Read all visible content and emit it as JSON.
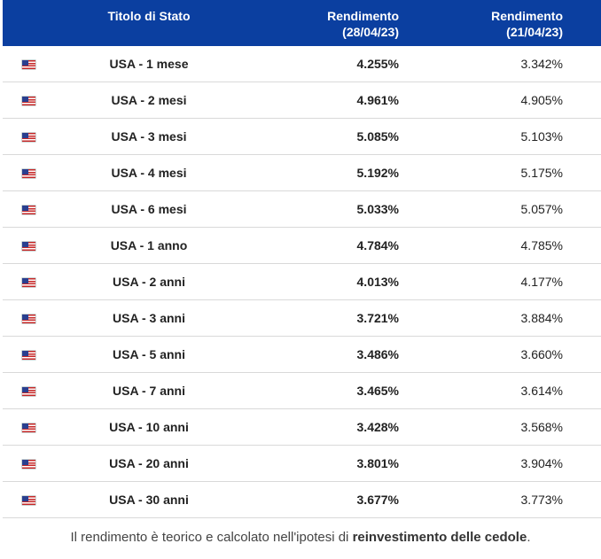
{
  "table": {
    "headers": {
      "name": "Titolo di Stato",
      "yield_current_label": "Rendimento",
      "yield_current_date": "(28/04/23)",
      "yield_previous_label": "Rendimento",
      "yield_previous_date": "(21/04/23)"
    },
    "flag_icon": "us-flag-icon",
    "rows": [
      {
        "name": "USA - 1 mese",
        "current": "4.255%",
        "previous": "3.342%"
      },
      {
        "name": "USA - 2 mesi",
        "current": "4.961%",
        "previous": "4.905%"
      },
      {
        "name": "USA - 3 mesi",
        "current": "5.085%",
        "previous": "5.103%"
      },
      {
        "name": "USA - 4 mesi",
        "current": "5.192%",
        "previous": "5.175%"
      },
      {
        "name": "USA - 6 mesi",
        "current": "5.033%",
        "previous": "5.057%"
      },
      {
        "name": "USA - 1 anno",
        "current": "4.784%",
        "previous": "4.785%"
      },
      {
        "name": "USA - 2 anni",
        "current": "4.013%",
        "previous": "4.177%"
      },
      {
        "name": "USA - 3 anni",
        "current": "3.721%",
        "previous": "3.884%"
      },
      {
        "name": "USA - 5 anni",
        "current": "3.486%",
        "previous": "3.660%"
      },
      {
        "name": "USA - 7 anni",
        "current": "3.465%",
        "previous": "3.614%"
      },
      {
        "name": "USA - 10 anni",
        "current": "3.428%",
        "previous": "3.568%"
      },
      {
        "name": "USA - 20 anni",
        "current": "3.801%",
        "previous": "3.904%"
      },
      {
        "name": "USA - 30 anni",
        "current": "3.677%",
        "previous": "3.773%"
      }
    ]
  },
  "note": {
    "prefix": "Il rendimento è teorico e calcolato nell'ipotesi di ",
    "emphasis": "reinvestimento delle cedole",
    "suffix": "."
  },
  "colors": {
    "header_bg": "#0b3fa0",
    "header_text": "#ffffff",
    "row_border": "#d9d9d9"
  }
}
